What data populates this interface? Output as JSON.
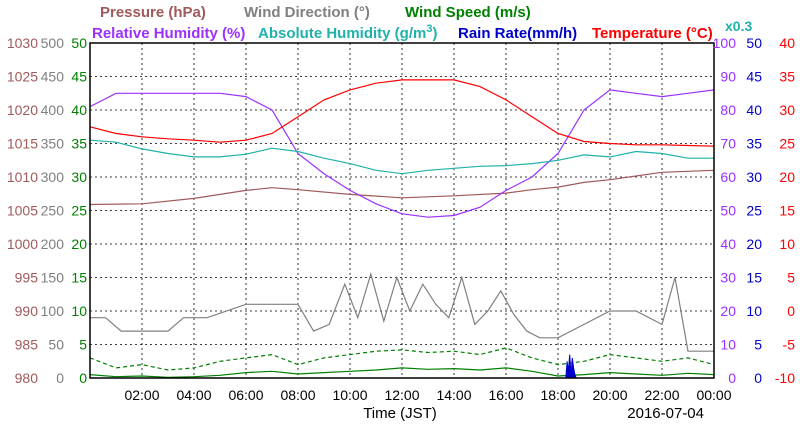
{
  "chart_data": {
    "type": "line",
    "date": "2016-07-04",
    "xlabel": "Time (JST)",
    "x_ticks": [
      "02:00",
      "04:00",
      "06:00",
      "08:00",
      "10:00",
      "12:00",
      "14:00",
      "16:00",
      "18:00",
      "20:00",
      "22:00",
      "00:00"
    ],
    "x_range_hours": [
      0,
      24
    ],
    "grid": true,
    "legend_position": "top",
    "y_axes": [
      {
        "name": "Pressure (hPa)",
        "side": "left",
        "color": "#a05a5a",
        "range": [
          980,
          1030
        ],
        "ticks": [
          "980",
          "985",
          "990",
          "995",
          "1000",
          "1005",
          "1010",
          "1015",
          "1020",
          "1025",
          "1030"
        ]
      },
      {
        "name": "Wind Direction (°)",
        "side": "left",
        "color": "#808080",
        "range": [
          0,
          500
        ],
        "ticks": [
          "0",
          "50",
          "100",
          "150",
          "200",
          "250",
          "300",
          "350",
          "400",
          "450",
          "500"
        ]
      },
      {
        "name": "Wind Speed (m/s)",
        "side": "left",
        "color": "#008000",
        "range": [
          0,
          50
        ],
        "ticks": [
          "0",
          "5",
          "10",
          "15",
          "20",
          "25",
          "30",
          "35",
          "40",
          "45",
          "50"
        ]
      },
      {
        "name": "Relative Humidity (%)",
        "side": "right",
        "color": "#9b30ff",
        "range": [
          0,
          100
        ],
        "ticks": [
          "0",
          "10",
          "20",
          "30",
          "40",
          "50",
          "60",
          "70",
          "80",
          "90",
          "100"
        ]
      },
      {
        "name": "Absolute Humidity (g/m³) ×0.3",
        "side": "right",
        "color": "#20b2aa",
        "range": [
          0,
          50
        ],
        "ticks": []
      },
      {
        "name": "Rain Rate(mm/h)",
        "side": "right",
        "color": "#0000cc",
        "range": [
          0,
          50
        ],
        "ticks": [
          "0",
          "5",
          "10",
          "15",
          "20",
          "25",
          "30",
          "35",
          "40",
          "45",
          "50"
        ]
      },
      {
        "name": "Temperature (°C)",
        "side": "right",
        "color": "#ff0000",
        "range": [
          -10,
          40
        ],
        "ticks": [
          "-10",
          "-5",
          "0",
          "5",
          "10",
          "15",
          "20",
          "25",
          "30",
          "35",
          "40"
        ]
      }
    ],
    "series": [
      {
        "name": "Pressure (hPa)",
        "axis": 0,
        "color": "#a05a5a",
        "style": "solid",
        "x": [
          0,
          2,
          4,
          6,
          7,
          8,
          10,
          12,
          14,
          16,
          17,
          18,
          19,
          20,
          22,
          24
        ],
        "y": [
          1005.9,
          1006,
          1006.8,
          1008,
          1008.4,
          1008.1,
          1007.4,
          1006.9,
          1007.2,
          1007.6,
          1008.1,
          1008.5,
          1009.2,
          1009.6,
          1010.7,
          1011
        ]
      },
      {
        "name": "Wind Direction (°)",
        "axis": 1,
        "color": "#808080",
        "style": "solid",
        "x": [
          0,
          0.6,
          1.2,
          3,
          3.6,
          4.5,
          6,
          7,
          8,
          8.6,
          9.2,
          9.8,
          10.3,
          10.8,
          11.3,
          11.8,
          12.3,
          12.8,
          13.3,
          13.8,
          14.3,
          14.8,
          15.3,
          15.8,
          16.3,
          16.8,
          17.3,
          18,
          19,
          20,
          21,
          22,
          22.5,
          23,
          24
        ],
        "y": [
          90,
          90,
          70,
          70,
          90,
          90,
          110,
          110,
          110,
          70,
          80,
          140,
          90,
          155,
          85,
          150,
          100,
          140,
          110,
          90,
          150,
          80,
          100,
          130,
          95,
          70,
          60,
          60,
          80,
          100,
          100,
          80,
          150,
          40,
          40
        ]
      },
      {
        "name": "Wind Speed (m/s)",
        "axis": 2,
        "color": "#008000",
        "style": "dashed",
        "x": [
          0,
          1,
          2,
          3,
          4,
          5,
          6,
          7,
          8,
          9,
          10,
          11,
          12,
          13,
          14,
          15,
          16,
          17,
          18,
          19,
          20,
          21,
          22,
          23,
          24
        ],
        "y": [
          3,
          1.5,
          2,
          1.2,
          1.5,
          2.5,
          3,
          3.5,
          2,
          3,
          3.5,
          4,
          4.2,
          3.8,
          4,
          3.5,
          4.5,
          3,
          2,
          2.5,
          3.5,
          3,
          2.5,
          3,
          2
        ]
      },
      {
        "name": "Wind Speed (m/s)",
        "axis": 2,
        "color": "#008000",
        "style": "solid",
        "x": [
          0,
          1,
          2,
          3,
          4,
          5,
          6,
          7,
          8,
          9,
          10,
          11,
          12,
          13,
          14,
          15,
          16,
          17,
          18,
          19,
          20,
          21,
          22,
          23,
          24
        ],
        "y": [
          0.5,
          0.2,
          0.3,
          0.1,
          0.2,
          0.4,
          0.8,
          1,
          0.6,
          0.8,
          1,
          1.2,
          1.5,
          1.3,
          1.4,
          1.2,
          1.5,
          1,
          0.3,
          0.5,
          0.8,
          0.6,
          0.4,
          0.7,
          0.5
        ]
      },
      {
        "name": "Relative Humidity (%)",
        "axis": 3,
        "color": "#9b30ff",
        "style": "solid",
        "x": [
          0,
          1,
          2,
          3,
          4,
          5,
          6,
          7,
          8,
          9,
          10,
          11,
          12,
          13,
          14,
          15,
          16,
          17,
          18,
          19,
          20,
          21,
          22,
          23,
          24
        ],
        "y": [
          81,
          85,
          85,
          85,
          85,
          85,
          84,
          80,
          67,
          61,
          56,
          52,
          49,
          48,
          48.5,
          51,
          56,
          60,
          67,
          80,
          86,
          85,
          84,
          85,
          86
        ]
      },
      {
        "name": "Absolute Humidity (g/m³) ×0.3",
        "axis": 4,
        "color": "#20b2aa",
        "style": "solid",
        "x": [
          0,
          1,
          2,
          3,
          4,
          5,
          6,
          7,
          8,
          9,
          10,
          11,
          12,
          13,
          14,
          15,
          16,
          17,
          18,
          19,
          20,
          21,
          22,
          23,
          24
        ],
        "y": [
          35.5,
          35.2,
          34.2,
          33.5,
          33,
          33,
          33.4,
          34.3,
          33.8,
          32.8,
          32,
          31,
          30.5,
          31,
          31.3,
          31.6,
          31.7,
          32,
          32.5,
          33.3,
          33,
          33.8,
          33.5,
          32.8,
          32.8
        ]
      },
      {
        "name": "Rain Rate(mm/h)",
        "axis": 5,
        "color": "#0000cc",
        "style": "solid",
        "x": [
          0,
          18.3,
          18.35,
          18.4,
          18.45,
          18.5,
          18.55,
          18.6,
          18.65,
          18.7,
          24
        ],
        "y": [
          0,
          0,
          2.5,
          1,
          3.5,
          0.5,
          3,
          1.5,
          0.5,
          0,
          0
        ]
      },
      {
        "name": "Temperature (°C)",
        "axis": 6,
        "color": "#ff0000",
        "style": "solid",
        "x": [
          0,
          1,
          2,
          3,
          4,
          5,
          6,
          7,
          8,
          9,
          10,
          11,
          12,
          13,
          14,
          15,
          16,
          17,
          18,
          19,
          20,
          21,
          22,
          23,
          24
        ],
        "y": [
          27.5,
          26.5,
          26,
          25.7,
          25.5,
          25.2,
          25.5,
          26.5,
          29,
          31.5,
          33,
          34,
          34.5,
          34.5,
          34.5,
          33.5,
          31.5,
          29,
          26.5,
          25.3,
          25,
          24.8,
          24.8,
          24.7,
          24.6
        ]
      }
    ]
  },
  "legend": {
    "pressure": "Pressure (hPa)",
    "wind_direction": "Wind Direction (°)",
    "wind_speed": "Wind Speed (m/s)",
    "relative_humidity": "Relative Humidity (%)",
    "absolute_humidity": "Absolute Humidity (g/m",
    "absolute_humidity_sup": "3",
    "absolute_humidity_end": ")",
    "rain_rate": "Rain Rate(mm/h)",
    "temperature": "Temperature (°C)",
    "scale_note": "x0.3"
  }
}
